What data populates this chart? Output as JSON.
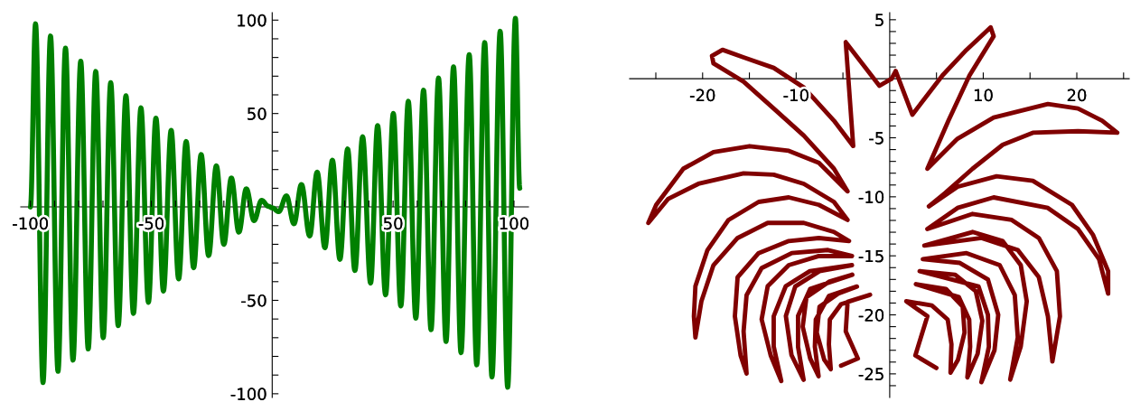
{
  "chart_data": [
    {
      "type": "line",
      "xlim": [
        -104,
        106
      ],
      "ylim": [
        -102,
        104
      ],
      "xticks": [
        -100,
        {
          "value": -90,
          "label": null
        },
        {
          "value": -80,
          "label": null
        },
        {
          "value": -70,
          "label": null
        },
        {
          "value": -60,
          "label": null
        },
        -50,
        {
          "value": -40,
          "label": null
        },
        {
          "value": -30,
          "label": null
        },
        {
          "value": -20,
          "label": null
        },
        {
          "value": -10,
          "label": null
        },
        {
          "value": 10,
          "label": null
        },
        {
          "value": 20,
          "label": null
        },
        {
          "value": 30,
          "label": null
        },
        {
          "value": 40,
          "label": null
        },
        50,
        {
          "value": 60,
          "label": null
        },
        {
          "value": 70,
          "label": null
        },
        {
          "value": 80,
          "label": null
        },
        {
          "value": 90,
          "label": null
        },
        100
      ],
      "yticks": [
        -100,
        {
          "value": -90,
          "label": null
        },
        {
          "value": -80,
          "label": null
        },
        {
          "value": -70,
          "label": null
        },
        {
          "value": -60,
          "label": null
        },
        -50,
        {
          "value": -40,
          "label": null
        },
        {
          "value": -30,
          "label": null
        },
        {
          "value": -20,
          "label": null
        },
        {
          "value": -10,
          "label": null
        },
        {
          "value": 10,
          "label": null
        },
        {
          "value": 20,
          "label": null
        },
        {
          "value": 30,
          "label": null
        },
        {
          "value": 40,
          "label": null
        },
        50,
        {
          "value": 60,
          "label": null
        },
        {
          "value": 70,
          "label": null
        },
        {
          "value": 80,
          "label": null
        },
        {
          "value": 90,
          "label": null
        },
        100
      ],
      "series": [
        {
          "color": "#008000",
          "x": [
            -100,
            -97.9,
            -94.8,
            -91.7,
            -88.6,
            -85.5,
            -82.4,
            -79.2,
            -76.1,
            -73,
            -69.9,
            -66.8,
            -63.7,
            -60.5,
            -57.4,
            -54.3,
            -51.2,
            -48.1,
            -45,
            -41.8,
            -38.7,
            -35.6,
            -32.5,
            -29.4,
            -26.3,
            -23.1,
            -20,
            -16.9,
            -13.8,
            -10.7,
            -7.5,
            -4.4,
            -1.5,
            0,
            2.7,
            5.9,
            9,
            12.1,
            15.5,
            18.6,
            21.8,
            24.9,
            28,
            31.2,
            34.2,
            37.4,
            40.7,
            43.6,
            46.9,
            50.1,
            53.2,
            56.3,
            59.4,
            62.6,
            65.7,
            68.8,
            71.9,
            75,
            78.1,
            81.5,
            84.6,
            87.9,
            90.9,
            94.3,
            97.4,
            100.6,
            102.4
          ],
          "values": [
            0,
            98,
            -94,
            91.5,
            -88,
            85,
            -82,
            78,
            -76,
            72.5,
            -70,
            66.5,
            -63.5,
            59.5,
            -57,
            53,
            -51,
            47.5,
            -45,
            41,
            -38.5,
            35,
            -32.5,
            28,
            -26,
            22,
            -20,
            15.5,
            -13.5,
            9.7,
            -7.3,
            3.5,
            0.3,
            -0.5,
            -2.5,
            5.9,
            -9,
            12,
            -15.5,
            18.6,
            -21.8,
            25,
            -28,
            31,
            -34,
            37.5,
            -40.7,
            43.5,
            -47,
            50,
            -53,
            56.5,
            -59.5,
            62.5,
            -65.7,
            69,
            -72,
            75,
            -78,
            81.5,
            -84.5,
            88,
            -91,
            94,
            -96.5,
            101,
            10
          ]
        }
      ]
    },
    {
      "type": "line",
      "xlim": [
        -27.8,
        25.6
      ],
      "ylim": [
        -27,
        5.6
      ],
      "xticks": [
        {
          "value": -25,
          "label": null
        },
        -20,
        {
          "value": -15,
          "label": null
        },
        -10,
        {
          "value": -5,
          "label": null
        },
        {
          "value": 5,
          "label": null
        },
        10,
        {
          "value": 15,
          "label": null
        },
        20,
        {
          "value": 25,
          "label": null
        }
      ],
      "yticks": [
        {
          "value": -26,
          "label": null
        },
        -25,
        {
          "value": -24,
          "label": null
        },
        {
          "value": -23,
          "label": null
        },
        {
          "value": -22,
          "label": null
        },
        {
          "value": -21,
          "label": null
        },
        -20,
        {
          "value": -19,
          "label": null
        },
        {
          "value": -18,
          "label": null
        },
        {
          "value": -17,
          "label": null
        },
        {
          "value": -16,
          "label": null
        },
        -15,
        {
          "value": -14,
          "label": null
        },
        {
          "value": -13,
          "label": null
        },
        {
          "value": -12,
          "label": null
        },
        {
          "value": -11,
          "label": null
        },
        -10,
        {
          "value": -9,
          "label": null
        },
        {
          "value": -8,
          "label": null
        },
        {
          "value": -7,
          "label": null
        },
        {
          "value": -6,
          "label": null
        },
        -5,
        {
          "value": -4,
          "label": null
        },
        {
          "value": -3,
          "label": null
        },
        {
          "value": -2,
          "label": null
        },
        {
          "value": -1,
          "label": null
        },
        {
          "value": 1,
          "label": null
        },
        {
          "value": 2,
          "label": null
        },
        {
          "value": 3,
          "label": null
        },
        {
          "value": 4,
          "label": null
        },
        5
      ],
      "series": [
        {
          "color": "#800000",
          "x": [
            0.2,
            -1.1,
            -4.7,
            -3.9,
            -5.96,
            -9.18,
            -12.4,
            -15.62,
            -17.87,
            -19.0,
            -18.84,
            -15.62,
            -12.4,
            -9.18,
            -5.96,
            -4.51,
            -7.57,
            -10.79,
            -14.98,
            -18.84,
            -22.06,
            -24.96,
            -25.8,
            -23.67,
            -20.45,
            -15.62,
            -12.4,
            -9.18,
            -5.96,
            -4.51,
            -7.57,
            -10.79,
            -14.01,
            -17.23,
            -19.48,
            -20.77,
            -20.93,
            -20.77,
            -20.13,
            -18.84,
            -16.26,
            -13.04,
            -9.18,
            -5.96,
            -4.35,
            -7.57,
            -10.79,
            -14.01,
            -16.26,
            -16.55,
            -15.94,
            -15.3,
            -15.62,
            -15.3,
            -13.69,
            -10.46,
            -6.6,
            -4.03,
            -7.57,
            -10.79,
            -13.04,
            -13.69,
            -12.72,
            -11.59,
            -12.4,
            -12.4,
            -11.11,
            -8.53,
            -4.03,
            -7.5,
            -10.1,
            -11.1,
            -10.5,
            -9.2,
            -9.8,
            -9.8,
            -8.5,
            -4.0,
            -6.5,
            -8.9,
            -9.3,
            -8.5,
            -7.6,
            -8.0,
            -7.9,
            -6.5,
            -3.5,
            -5.5,
            -7.5,
            -7.8,
            -7.0,
            -6.3,
            -6.5,
            -6.4,
            -5.2,
            -2.1,
            -4.5,
            -4.7,
            -3.4,
            -5.2
          ],
          "values": [
            0.0,
            -0.6,
            3.1,
            -5.7,
            -3.55,
            -0.74,
            0.92,
            1.81,
            2.45,
            1.94,
            1.3,
            -0.24,
            -2.52,
            -4.82,
            -7.62,
            -9.54,
            -7.12,
            -6.1,
            -5.71,
            -6.22,
            -7.62,
            -10.68,
            -12.21,
            -10.17,
            -8.9,
            -8.01,
            -8.13,
            -8.9,
            -10.43,
            -11.96,
            -10.68,
            -10.05,
            -10.43,
            -11.96,
            -14.51,
            -17.57,
            -20.12,
            -21.91,
            -18.85,
            -15.79,
            -13.49,
            -12.21,
            -12.21,
            -12.98,
            -13.75,
            -13.49,
            -13.75,
            -14.77,
            -16.81,
            -20.12,
            -23.44,
            -24.97,
            -21.4,
            -18.33,
            -16.04,
            -14.77,
            -14.51,
            -15.02,
            -15.02,
            -15.79,
            -17.57,
            -20.38,
            -23.44,
            -25.61,
            -22.68,
            -20.12,
            -17.57,
            -16.3,
            -15.79,
            -16.3,
            -17.6,
            -20.1,
            -23.4,
            -25.5,
            -22.7,
            -20.1,
            -17.8,
            -16.6,
            -17.2,
            -18.5,
            -21.0,
            -23.7,
            -25.2,
            -22.7,
            -20.4,
            -18.4,
            -17.6,
            -18.2,
            -19.3,
            -21.5,
            -23.8,
            -24.6,
            -22.5,
            -20.4,
            -19.1,
            -18.3,
            -18.9,
            -21.4,
            -23.7,
            -24.3
          ]
        },
        {
          "color": "#800000",
          "x": [
            0.2,
            0.64,
            2.42,
            5.64,
            8.21,
            10.79,
            11.11,
            8.53,
            6.28,
            4.03,
            7.25,
            11.11,
            16.91,
            20.13,
            22.71,
            24.32,
            20.13,
            15.3,
            12.08,
            8.86,
            5.96,
            4.19,
            7.25,
            11.43,
            15.3,
            19.48,
            21.74,
            23.35,
            23.35,
            22.38,
            20.13,
            16.91,
            11.11,
            7.25,
            4.03,
            8.86,
            13.04,
            15.94,
            17.87,
            18.2,
            17.39,
            16.91,
            15.94,
            13.69,
            9.82,
            3.7,
            8.86,
            12.08,
            14.01,
            14.65,
            14.01,
            12.88,
            13.69,
            13.37,
            11.76,
            8.21,
            3.54,
            7.5,
            10.5,
            11.6,
            11.2,
            9.8,
            10.6,
            10.5,
            9.5,
            3.2,
            7.0,
            9.2,
            9.9,
            9.4,
            8.3,
            8.6,
            8.5,
            7.4,
            2.8,
            6.0,
            7.8,
            8.0,
            7.3,
            6.5,
            6.6,
            6.2,
            4.5,
            1.77,
            4.03,
            2.74,
            4.99
          ],
          "values": [
            0.0,
            0.66,
            -3.04,
            0.28,
            2.45,
            4.36,
            3.6,
            0.28,
            -3.55,
            -7.62,
            -5.08,
            -3.29,
            -2.14,
            -2.52,
            -3.55,
            -4.57,
            -4.44,
            -4.57,
            -5.59,
            -7.62,
            -9.66,
            -10.81,
            -9.15,
            -8.26,
            -8.64,
            -10.68,
            -13.24,
            -16.3,
            -18.21,
            -15.28,
            -12.73,
            -10.94,
            -10.05,
            -10.94,
            -12.73,
            -11.45,
            -11.96,
            -13.49,
            -16.3,
            -20.12,
            -23.95,
            -20.12,
            -16.81,
            -14.51,
            -13.49,
            -14.13,
            -12.98,
            -13.75,
            -15.79,
            -18.85,
            -22.68,
            -25.48,
            -21.91,
            -18.33,
            -15.79,
            -14.77,
            -15.28,
            -15.6,
            -17.0,
            -20.0,
            -23.0,
            -25.7,
            -22.7,
            -20.0,
            -17.6,
            -16.3,
            -16.6,
            -18.0,
            -20.5,
            -23.3,
            -25.3,
            -22.7,
            -20.4,
            -18.5,
            -17.4,
            -17.8,
            -19.3,
            -21.5,
            -23.8,
            -24.9,
            -22.5,
            -20.4,
            -19.2,
            -18.85,
            -20.12,
            -23.44,
            -24.5
          ]
        }
      ]
    }
  ]
}
